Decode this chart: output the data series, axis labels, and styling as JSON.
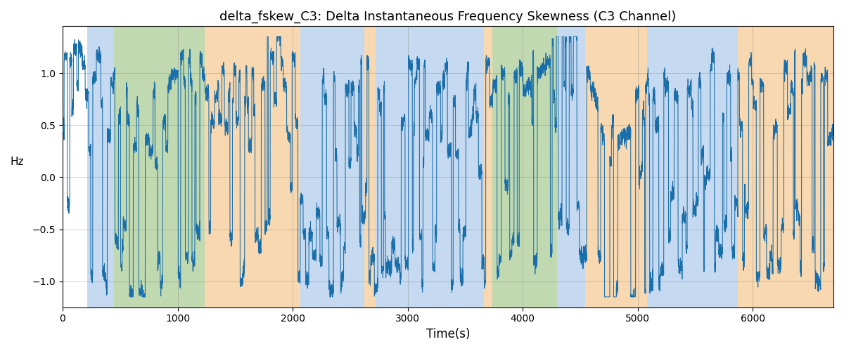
{
  "title": "delta_fskew_C3: Delta Instantaneous Frequency Skewness (C3 Channel)",
  "xlabel": "Time(s)",
  "ylabel": "Hz",
  "xlim": [
    0,
    6700
  ],
  "ylim": [
    -1.25,
    1.45
  ],
  "line_color": "#1a6fab",
  "line_width": 0.75,
  "bg_regions": [
    {
      "xstart": 0,
      "xend": 215,
      "color": "#ffffff"
    },
    {
      "xstart": 215,
      "xend": 445,
      "color": "#c5d9f0"
    },
    {
      "xstart": 445,
      "xend": 1235,
      "color": "#c0d9b0"
    },
    {
      "xstart": 1235,
      "xend": 2065,
      "color": "#f8d8b0"
    },
    {
      "xstart": 2065,
      "xend": 2620,
      "color": "#c5d9f0"
    },
    {
      "xstart": 2620,
      "xend": 2720,
      "color": "#f8d8b0"
    },
    {
      "xstart": 2720,
      "xend": 3660,
      "color": "#c5d9f0"
    },
    {
      "xstart": 3660,
      "xend": 3735,
      "color": "#f8d8b0"
    },
    {
      "xstart": 3735,
      "xend": 4295,
      "color": "#c0d9b0"
    },
    {
      "xstart": 4295,
      "xend": 4540,
      "color": "#c5d9f0"
    },
    {
      "xstart": 4540,
      "xend": 5080,
      "color": "#f8d8b0"
    },
    {
      "xstart": 5080,
      "xend": 5870,
      "color": "#c5d9f0"
    },
    {
      "xstart": 5870,
      "xend": 6700,
      "color": "#f8d8b0"
    }
  ],
  "seed": 42,
  "n_points": 6700,
  "grid": true,
  "title_fontsize": 13,
  "xticks": [
    0,
    1000,
    2000,
    3000,
    4000,
    5000,
    6000
  ],
  "yticks": [
    -1.0,
    -0.5,
    0.0,
    0.5,
    1.0
  ]
}
